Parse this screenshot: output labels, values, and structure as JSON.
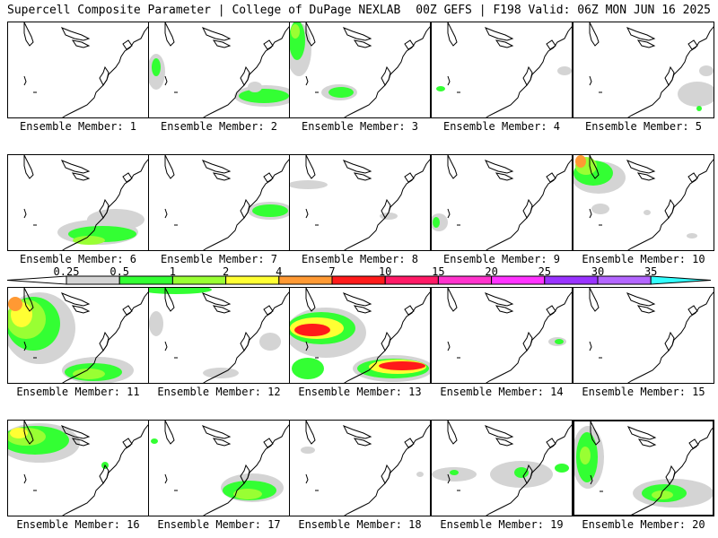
{
  "header": {
    "left": "Supercell Composite Parameter | College of DuPage NEXLAB",
    "right": "00Z GEFS | F198 Valid: 06Z MON JUN 16 2025"
  },
  "colorbar": {
    "labels": [
      "0.25",
      "0.5",
      "1",
      "2",
      "4",
      "7",
      "10",
      "15",
      "20",
      "25",
      "30",
      "35"
    ],
    "colors": [
      "#d4d4d4",
      "#33ff33",
      "#99ff33",
      "#ffff33",
      "#ff9933",
      "#ff1a1a",
      "#ff1a66",
      "#ff33cc",
      "#ff33ff",
      "#9933ff",
      "#b366ff",
      "#33ffff"
    ]
  },
  "panels": [
    {
      "label": "Ensemble Member: 1",
      "blobs": []
    },
    {
      "label": "Ensemble Member: 2",
      "blobs": [
        {
          "x": 8,
          "y": 55,
          "rx": 10,
          "ry": 20,
          "c": 0
        },
        {
          "x": 8,
          "y": 50,
          "rx": 5,
          "ry": 10,
          "c": 1
        },
        {
          "x": 130,
          "y": 82,
          "rx": 35,
          "ry": 12,
          "c": 0
        },
        {
          "x": 128,
          "y": 82,
          "rx": 28,
          "ry": 8,
          "c": 1
        },
        {
          "x": 118,
          "y": 72,
          "rx": 8,
          "ry": 6,
          "c": 0
        }
      ]
    },
    {
      "label": "Ensemble Member: 3",
      "blobs": [
        {
          "x": 10,
          "y": 30,
          "rx": 14,
          "ry": 30,
          "c": 0
        },
        {
          "x": 8,
          "y": 20,
          "rx": 9,
          "ry": 22,
          "c": 1
        },
        {
          "x": 6,
          "y": 10,
          "rx": 5,
          "ry": 8,
          "c": 2
        },
        {
          "x": 55,
          "y": 78,
          "rx": 20,
          "ry": 9,
          "c": 0
        },
        {
          "x": 57,
          "y": 78,
          "rx": 14,
          "ry": 6,
          "c": 1
        }
      ]
    },
    {
      "label": "Ensemble Member: 4",
      "blobs": [
        {
          "x": 148,
          "y": 54,
          "rx": 8,
          "ry": 5,
          "c": 0
        },
        {
          "x": 10,
          "y": 74,
          "rx": 5,
          "ry": 3,
          "c": 1
        }
      ]
    },
    {
      "label": "Ensemble Member: 5",
      "blobs": [
        {
          "x": 138,
          "y": 80,
          "rx": 22,
          "ry": 14,
          "c": 0
        },
        {
          "x": 148,
          "y": 54,
          "rx": 8,
          "ry": 6,
          "c": 0
        },
        {
          "x": 140,
          "y": 96,
          "rx": 3,
          "ry": 3,
          "c": 1
        }
      ]
    },
    {
      "label": "Ensemble Member: 6",
      "blobs": [
        {
          "x": 120,
          "y": 72,
          "rx": 32,
          "ry": 12,
          "c": 0
        },
        {
          "x": 100,
          "y": 86,
          "rx": 45,
          "ry": 14,
          "c": 0
        },
        {
          "x": 105,
          "y": 88,
          "rx": 38,
          "ry": 9,
          "c": 1
        },
        {
          "x": 90,
          "y": 95,
          "rx": 18,
          "ry": 5,
          "c": 2
        }
      ]
    },
    {
      "label": "Ensemble Member: 7",
      "blobs": [
        {
          "x": 135,
          "y": 62,
          "rx": 25,
          "ry": 10,
          "c": 0
        },
        {
          "x": 135,
          "y": 62,
          "rx": 20,
          "ry": 7,
          "c": 1
        }
      ]
    },
    {
      "label": "Ensemble Member: 8",
      "blobs": [
        {
          "x": 20,
          "y": 33,
          "rx": 22,
          "ry": 5,
          "c": 0
        },
        {
          "x": 110,
          "y": 68,
          "rx": 10,
          "ry": 4,
          "c": 0
        }
      ]
    },
    {
      "label": "Ensemble Member: 9",
      "blobs": [
        {
          "x": 8,
          "y": 75,
          "rx": 10,
          "ry": 10,
          "c": 0
        },
        {
          "x": 5,
          "y": 75,
          "rx": 4,
          "ry": 6,
          "c": 1
        }
      ]
    },
    {
      "label": "Ensemble Member: 10",
      "blobs": [
        {
          "x": 28,
          "y": 25,
          "rx": 30,
          "ry": 18,
          "c": 0
        },
        {
          "x": 22,
          "y": 20,
          "rx": 22,
          "ry": 14,
          "c": 1
        },
        {
          "x": 14,
          "y": 12,
          "rx": 12,
          "ry": 10,
          "c": 2
        },
        {
          "x": 8,
          "y": 7,
          "rx": 6,
          "ry": 7,
          "c": 4
        },
        {
          "x": 30,
          "y": 60,
          "rx": 10,
          "ry": 6,
          "c": 0
        },
        {
          "x": 82,
          "y": 64,
          "rx": 4,
          "ry": 3,
          "c": 0
        },
        {
          "x": 132,
          "y": 90,
          "rx": 6,
          "ry": 3,
          "c": 0
        }
      ]
    },
    {
      "label": "Ensemble Member: 11",
      "blobs": [
        {
          "x": 35,
          "y": 45,
          "rx": 40,
          "ry": 40,
          "c": 0
        },
        {
          "x": 28,
          "y": 40,
          "rx": 30,
          "ry": 30,
          "c": 1
        },
        {
          "x": 20,
          "y": 35,
          "rx": 22,
          "ry": 22,
          "c": 2
        },
        {
          "x": 15,
          "y": 30,
          "rx": 12,
          "ry": 14,
          "c": 3
        },
        {
          "x": 8,
          "y": 18,
          "rx": 8,
          "ry": 8,
          "c": 4
        },
        {
          "x": 100,
          "y": 92,
          "rx": 40,
          "ry": 15,
          "c": 0
        },
        {
          "x": 95,
          "y": 94,
          "rx": 32,
          "ry": 10,
          "c": 1
        },
        {
          "x": 90,
          "y": 96,
          "rx": 18,
          "ry": 6,
          "c": 2
        }
      ]
    },
    {
      "label": "Ensemble Member: 12",
      "blobs": [
        {
          "x": 8,
          "y": 40,
          "rx": 8,
          "ry": 14,
          "c": 0
        },
        {
          "x": 80,
          "y": 95,
          "rx": 20,
          "ry": 6,
          "c": 0
        },
        {
          "x": 135,
          "y": 60,
          "rx": 12,
          "ry": 10,
          "c": 0
        },
        {
          "x": 30,
          "y": 2,
          "rx": 40,
          "ry": 5,
          "c": 1
        }
      ]
    },
    {
      "label": "Ensemble Member: 13",
      "blobs": [
        {
          "x": 40,
          "y": 50,
          "rx": 45,
          "ry": 28,
          "c": 0
        },
        {
          "x": 35,
          "y": 45,
          "rx": 38,
          "ry": 18,
          "c": 1
        },
        {
          "x": 30,
          "y": 45,
          "rx": 30,
          "ry": 12,
          "c": 3
        },
        {
          "x": 25,
          "y": 47,
          "rx": 20,
          "ry": 7,
          "c": 5
        },
        {
          "x": 115,
          "y": 90,
          "rx": 45,
          "ry": 15,
          "c": 0
        },
        {
          "x": 115,
          "y": 90,
          "rx": 40,
          "ry": 11,
          "c": 1
        },
        {
          "x": 120,
          "y": 88,
          "rx": 32,
          "ry": 8,
          "c": 3
        },
        {
          "x": 125,
          "y": 87,
          "rx": 26,
          "ry": 5,
          "c": 5
        },
        {
          "x": 20,
          "y": 90,
          "rx": 18,
          "ry": 12,
          "c": 1
        }
      ]
    },
    {
      "label": "Ensemble Member: 14",
      "blobs": [
        {
          "x": 140,
          "y": 60,
          "rx": 10,
          "ry": 5,
          "c": 0
        },
        {
          "x": 142,
          "y": 60,
          "rx": 5,
          "ry": 3,
          "c": 1
        }
      ]
    },
    {
      "label": "Ensemble Member: 15",
      "blobs": []
    },
    {
      "label": "Ensemble Member: 16",
      "blobs": [
        {
          "x": 35,
          "y": 25,
          "rx": 45,
          "ry": 22,
          "c": 0
        },
        {
          "x": 30,
          "y": 22,
          "rx": 38,
          "ry": 16,
          "c": 1
        },
        {
          "x": 20,
          "y": 18,
          "rx": 22,
          "ry": 10,
          "c": 2
        },
        {
          "x": 12,
          "y": 14,
          "rx": 10,
          "ry": 6,
          "c": 3
        },
        {
          "x": 108,
          "y": 50,
          "rx": 4,
          "ry": 4,
          "c": 1
        }
      ]
    },
    {
      "label": "Ensemble Member: 17",
      "blobs": [
        {
          "x": 115,
          "y": 75,
          "rx": 35,
          "ry": 16,
          "c": 0
        },
        {
          "x": 112,
          "y": 78,
          "rx": 30,
          "ry": 11,
          "c": 1
        },
        {
          "x": 110,
          "y": 82,
          "rx": 16,
          "ry": 6,
          "c": 2
        },
        {
          "x": 6,
          "y": 23,
          "rx": 4,
          "ry": 3,
          "c": 1
        }
      ]
    },
    {
      "label": "Ensemble Member: 18",
      "blobs": [
        {
          "x": 20,
          "y": 33,
          "rx": 8,
          "ry": 4,
          "c": 0
        },
        {
          "x": 145,
          "y": 60,
          "rx": 4,
          "ry": 3,
          "c": 0
        }
      ]
    },
    {
      "label": "Ensemble Member: 19",
      "blobs": [
        {
          "x": 25,
          "y": 60,
          "rx": 25,
          "ry": 8,
          "c": 0
        },
        {
          "x": 25,
          "y": 58,
          "rx": 5,
          "ry": 3,
          "c": 1
        },
        {
          "x": 100,
          "y": 60,
          "rx": 35,
          "ry": 15,
          "c": 0
        },
        {
          "x": 100,
          "y": 58,
          "rx": 8,
          "ry": 6,
          "c": 1
        },
        {
          "x": 145,
          "y": 53,
          "rx": 8,
          "ry": 5,
          "c": 1
        }
      ]
    },
    {
      "label": "Ensemble Member: 20",
      "blobs": [
        {
          "x": 15,
          "y": 40,
          "rx": 18,
          "ry": 35,
          "c": 0
        },
        {
          "x": 14,
          "y": 40,
          "rx": 12,
          "ry": 28,
          "c": 1
        },
        {
          "x": 12,
          "y": 38,
          "rx": 6,
          "ry": 10,
          "c": 2
        },
        {
          "x": 110,
          "y": 80,
          "rx": 45,
          "ry": 16,
          "c": 0
        },
        {
          "x": 100,
          "y": 80,
          "rx": 25,
          "ry": 10,
          "c": 1
        },
        {
          "x": 98,
          "y": 82,
          "rx": 12,
          "ry": 5,
          "c": 2
        }
      ]
    }
  ]
}
